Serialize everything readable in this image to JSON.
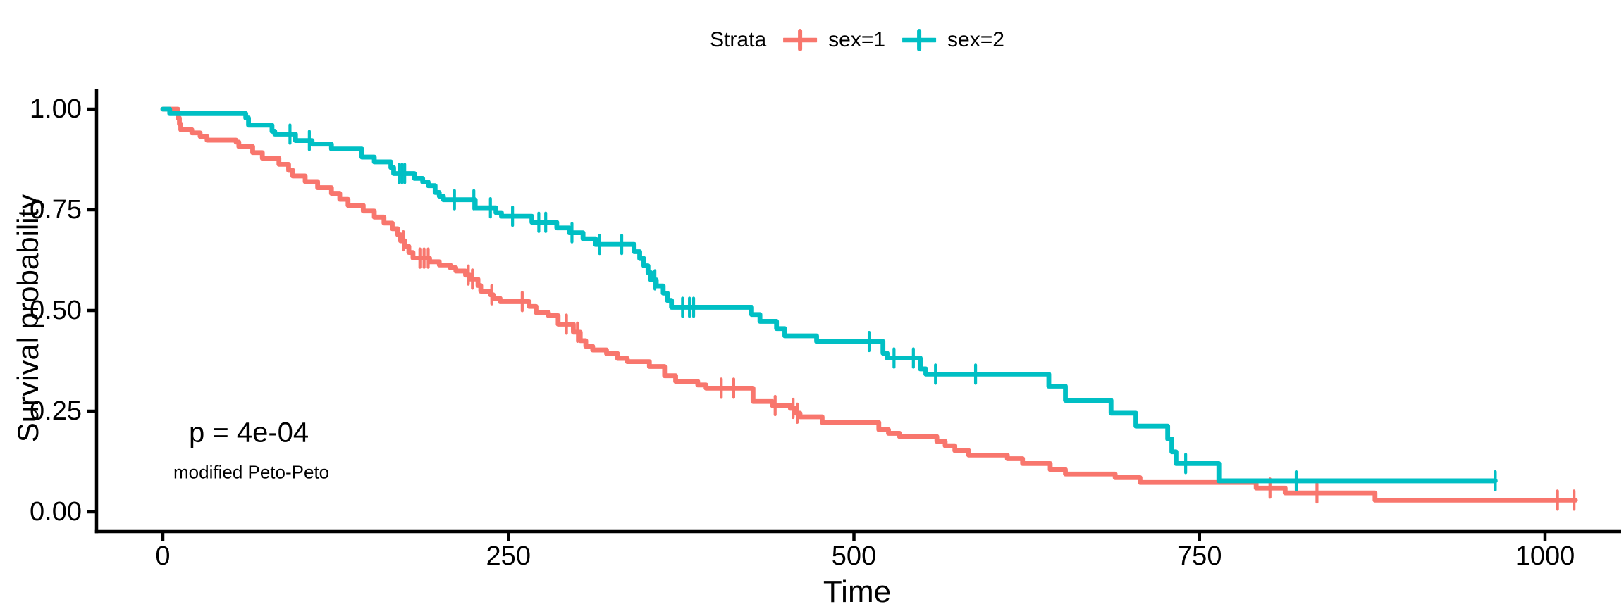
{
  "figure": {
    "background": "#ffffff",
    "text_color": "#000000"
  },
  "legend": {
    "title": "Strata",
    "items": [
      {
        "label": "sex=1",
        "color": "#F8766D"
      },
      {
        "label": "sex=2",
        "color": "#00BFC4"
      }
    ]
  },
  "annotations": {
    "pvalue": "p = 4e-04",
    "method": "modified Peto-Peto"
  },
  "chart_data": {
    "type": "line",
    "subtype": "kaplan-meier-step-curves",
    "title": "",
    "xlabel": "Time",
    "ylabel": "Survival probability",
    "xlim": [
      0,
      1050
    ],
    "ylim": [
      0,
      1
    ],
    "x_ticks": [
      0,
      250,
      500,
      750,
      1000
    ],
    "y_tick_labels": [
      "0.00",
      "0.25",
      "0.50",
      "0.75",
      "1.00"
    ],
    "y_tick_values": [
      0,
      0.25,
      0.5,
      0.75,
      1
    ],
    "grid": false,
    "legend_position": "top",
    "legend_title": "Strata",
    "pvalue": "p = 4e-04",
    "pvalue_method": "modified Peto-Peto",
    "series": [
      {
        "name": "sex=1",
        "color": "#F8766D",
        "end_time": 1022,
        "steps": [
          [
            0,
            1.0
          ],
          [
            11,
            0.978
          ],
          [
            12,
            0.963
          ],
          [
            13,
            0.949
          ],
          [
            21,
            0.941
          ],
          [
            27,
            0.932
          ],
          [
            32,
            0.923
          ],
          [
            53,
            0.918
          ],
          [
            55,
            0.907
          ],
          [
            65,
            0.892
          ],
          [
            72,
            0.878
          ],
          [
            84,
            0.863
          ],
          [
            91,
            0.848
          ],
          [
            94,
            0.834
          ],
          [
            103,
            0.82
          ],
          [
            112,
            0.805
          ],
          [
            122,
            0.791
          ],
          [
            128,
            0.776
          ],
          [
            134,
            0.761
          ],
          [
            145,
            0.747
          ],
          [
            153,
            0.732
          ],
          [
            160,
            0.717
          ],
          [
            166,
            0.703
          ],
          [
            170,
            0.688
          ],
          [
            172,
            0.673
          ],
          [
            175,
            0.659
          ],
          [
            178,
            0.644
          ],
          [
            181,
            0.63
          ],
          [
            193,
            0.621
          ],
          [
            200,
            0.613
          ],
          [
            208,
            0.606
          ],
          [
            212,
            0.598
          ],
          [
            219,
            0.588
          ],
          [
            222,
            0.578
          ],
          [
            228,
            0.562
          ],
          [
            230,
            0.548
          ],
          [
            237,
            0.539
          ],
          [
            239,
            0.53
          ],
          [
            244,
            0.522
          ],
          [
            265,
            0.51
          ],
          [
            270,
            0.495
          ],
          [
            279,
            0.487
          ],
          [
            286,
            0.466
          ],
          [
            297,
            0.446
          ],
          [
            302,
            0.425
          ],
          [
            306,
            0.411
          ],
          [
            311,
            0.402
          ],
          [
            321,
            0.393
          ],
          [
            329,
            0.381
          ],
          [
            336,
            0.373
          ],
          [
            352,
            0.361
          ],
          [
            363,
            0.338
          ],
          [
            371,
            0.324
          ],
          [
            387,
            0.315
          ],
          [
            393,
            0.307
          ],
          [
            427,
            0.274
          ],
          [
            441,
            0.264
          ],
          [
            454,
            0.257
          ],
          [
            458,
            0.245
          ],
          [
            461,
            0.236
          ],
          [
            477,
            0.222
          ],
          [
            518,
            0.204
          ],
          [
            525,
            0.195
          ],
          [
            533,
            0.187
          ],
          [
            560,
            0.175
          ],
          [
            566,
            0.164
          ],
          [
            573,
            0.152
          ],
          [
            583,
            0.141
          ],
          [
            611,
            0.132
          ],
          [
            622,
            0.12
          ],
          [
            642,
            0.105
          ],
          [
            653,
            0.094
          ],
          [
            689,
            0.085
          ],
          [
            707,
            0.073
          ],
          [
            791,
            0.059
          ],
          [
            812,
            0.047
          ],
          [
            877,
            0.029
          ]
        ],
        "censors": [
          [
            174,
            0.673
          ],
          [
            186,
            0.63
          ],
          [
            189,
            0.63
          ],
          [
            192,
            0.63
          ],
          [
            221,
            0.588
          ],
          [
            224,
            0.578
          ],
          [
            238,
            0.539
          ],
          [
            260,
            0.522
          ],
          [
            292,
            0.466
          ],
          [
            300,
            0.446
          ],
          [
            404,
            0.307
          ],
          [
            413,
            0.307
          ],
          [
            443,
            0.264
          ],
          [
            456,
            0.257
          ],
          [
            459,
            0.245
          ],
          [
            801,
            0.059
          ],
          [
            835,
            0.047
          ],
          [
            1009,
            0.029
          ],
          [
            1021,
            0.029
          ]
        ]
      },
      {
        "name": "sex=2",
        "color": "#00BFC4",
        "end_time": 964,
        "steps": [
          [
            0,
            1.0
          ],
          [
            5,
            0.989
          ],
          [
            60,
            0.978
          ],
          [
            62,
            0.96
          ],
          [
            79,
            0.945
          ],
          [
            81,
            0.938
          ],
          [
            96,
            0.922
          ],
          [
            108,
            0.913
          ],
          [
            122,
            0.901
          ],
          [
            144,
            0.881
          ],
          [
            153,
            0.869
          ],
          [
            165,
            0.855
          ],
          [
            167,
            0.84
          ],
          [
            182,
            0.828
          ],
          [
            188,
            0.819
          ],
          [
            192,
            0.81
          ],
          [
            197,
            0.793
          ],
          [
            200,
            0.784
          ],
          [
            203,
            0.775
          ],
          [
            226,
            0.755
          ],
          [
            241,
            0.743
          ],
          [
            245,
            0.734
          ],
          [
            267,
            0.719
          ],
          [
            285,
            0.705
          ],
          [
            294,
            0.693
          ],
          [
            304,
            0.678
          ],
          [
            313,
            0.664
          ],
          [
            341,
            0.646
          ],
          [
            345,
            0.629
          ],
          [
            348,
            0.611
          ],
          [
            351,
            0.594
          ],
          [
            353,
            0.576
          ],
          [
            357,
            0.561
          ],
          [
            362,
            0.543
          ],
          [
            365,
            0.525
          ],
          [
            368,
            0.508
          ],
          [
            426,
            0.49
          ],
          [
            432,
            0.473
          ],
          [
            444,
            0.455
          ],
          [
            450,
            0.437
          ],
          [
            473,
            0.423
          ],
          [
            521,
            0.394
          ],
          [
            524,
            0.382
          ],
          [
            548,
            0.355
          ],
          [
            552,
            0.342
          ],
          [
            641,
            0.312
          ],
          [
            653,
            0.277
          ],
          [
            686,
            0.245
          ],
          [
            704,
            0.213
          ],
          [
            727,
            0.181
          ],
          [
            730,
            0.149
          ],
          [
            733,
            0.12
          ],
          [
            764,
            0.077
          ]
        ],
        "censors": [
          [
            92,
            0.938
          ],
          [
            106,
            0.922
          ],
          [
            171,
            0.84
          ],
          [
            173,
            0.84
          ],
          [
            175,
            0.84
          ],
          [
            211,
            0.775
          ],
          [
            225,
            0.775
          ],
          [
            237,
            0.755
          ],
          [
            253,
            0.734
          ],
          [
            272,
            0.719
          ],
          [
            277,
            0.719
          ],
          [
            296,
            0.693
          ],
          [
            316,
            0.664
          ],
          [
            332,
            0.664
          ],
          [
            356,
            0.576
          ],
          [
            376,
            0.508
          ],
          [
            381,
            0.508
          ],
          [
            384,
            0.508
          ],
          [
            511,
            0.423
          ],
          [
            529,
            0.382
          ],
          [
            543,
            0.382
          ],
          [
            559,
            0.342
          ],
          [
            588,
            0.342
          ],
          [
            740,
            0.12
          ],
          [
            820,
            0.077
          ],
          [
            964,
            0.077
          ]
        ]
      }
    ]
  }
}
